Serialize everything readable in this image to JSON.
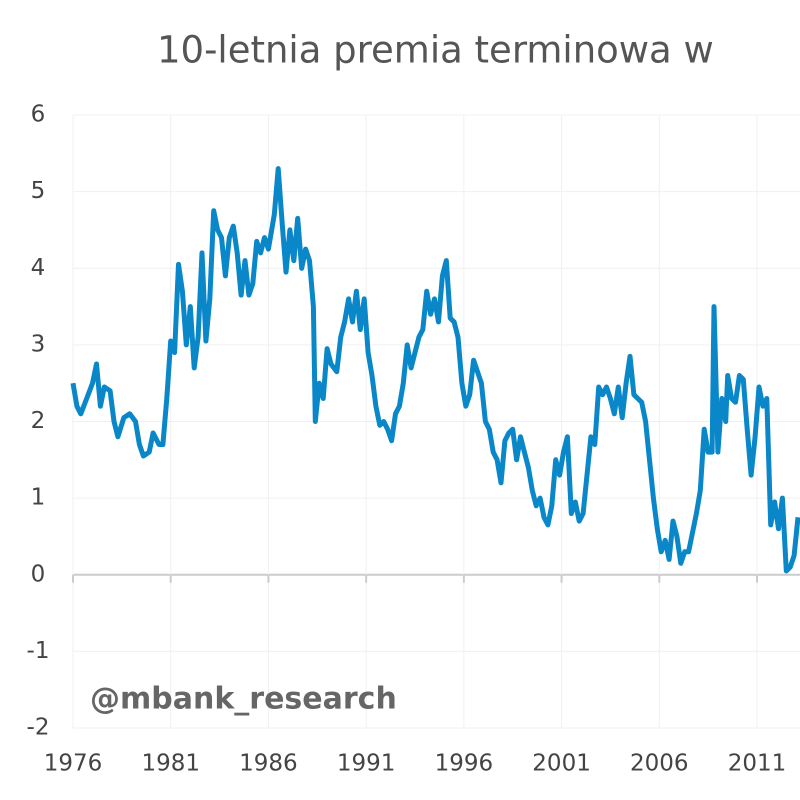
{
  "chart_data": {
    "type": "line",
    "title": "10-letnia premia terminowa w",
    "annotation": "@mbank_research",
    "xlim": [
      1976,
      2013.2
    ],
    "xticks": [
      1976,
      1981,
      1986,
      1991,
      1996,
      2001,
      2006,
      2011
    ],
    "ylim": [
      -2,
      6
    ],
    "yticks": [
      -2,
      -1,
      0,
      1,
      2,
      3,
      4,
      5,
      6
    ],
    "grid": true,
    "series": [
      {
        "name": "premia terminowa",
        "color": "#0a87c9",
        "x": [
          1976.0,
          1976.2,
          1976.4,
          1976.7,
          1977.0,
          1977.2,
          1977.4,
          1977.6,
          1977.9,
          1978.1,
          1978.3,
          1978.6,
          1978.9,
          1979.2,
          1979.4,
          1979.6,
          1979.9,
          1980.1,
          1980.4,
          1980.6,
          1980.8,
          1981.0,
          1981.2,
          1981.4,
          1981.6,
          1981.8,
          1982.0,
          1982.2,
          1982.4,
          1982.6,
          1982.8,
          1983.0,
          1983.2,
          1983.4,
          1983.6,
          1983.8,
          1984.0,
          1984.2,
          1984.4,
          1984.6,
          1984.8,
          1985.0,
          1985.2,
          1985.4,
          1985.6,
          1985.8,
          1986.0,
          1986.3,
          1986.5,
          1986.7,
          1986.9,
          1987.1,
          1987.3,
          1987.5,
          1987.7,
          1987.9,
          1988.1,
          1988.3,
          1988.4,
          1988.6,
          1988.8,
          1989.0,
          1989.2,
          1989.5,
          1989.7,
          1989.9,
          1990.1,
          1990.3,
          1990.5,
          1990.7,
          1990.9,
          1991.1,
          1991.3,
          1991.5,
          1991.7,
          1991.9,
          1992.1,
          1992.3,
          1992.5,
          1992.7,
          1992.9,
          1993.1,
          1993.3,
          1993.5,
          1993.7,
          1993.9,
          1994.1,
          1994.3,
          1994.5,
          1994.7,
          1994.9,
          1995.1,
          1995.3,
          1995.5,
          1995.7,
          1995.9,
          1996.1,
          1996.3,
          1996.5,
          1996.7,
          1996.9,
          1997.1,
          1997.3,
          1997.5,
          1997.7,
          1997.9,
          1998.1,
          1998.3,
          1998.5,
          1998.7,
          1998.9,
          1999.1,
          1999.3,
          1999.5,
          1999.7,
          1999.9,
          2000.1,
          2000.3,
          2000.5,
          2000.7,
          2000.9,
          2001.1,
          2001.3,
          2001.5,
          2001.7,
          2001.9,
          2002.1,
          2002.3,
          2002.5,
          2002.7,
          2002.9,
          2003.1,
          2003.3,
          2003.5,
          2003.7,
          2003.9,
          2004.1,
          2004.3,
          2004.5,
          2004.7,
          2004.9,
          2005.1,
          2005.3,
          2005.5,
          2005.7,
          2005.9,
          2006.1,
          2006.3,
          2006.5,
          2006.7,
          2006.9,
          2007.1,
          2007.3,
          2007.5,
          2007.7,
          2007.9,
          2008.1,
          2008.3,
          2008.5,
          2008.7,
          2008.8,
          2009.0,
          2009.2,
          2009.4,
          2009.5,
          2009.7,
          2009.9,
          2010.1,
          2010.3,
          2010.5,
          2010.7,
          2010.9,
          2011.1,
          2011.3,
          2011.5,
          2011.7,
          2011.9,
          2012.1,
          2012.3,
          2012.5,
          2012.7,
          2012.9,
          2013.1
        ],
        "values": [
          2.5,
          2.2,
          2.1,
          2.3,
          2.5,
          2.75,
          2.2,
          2.45,
          2.4,
          2.0,
          1.8,
          2.05,
          2.1,
          2.0,
          1.7,
          1.55,
          1.6,
          1.85,
          1.7,
          1.7,
          2.3,
          3.05,
          2.9,
          4.05,
          3.7,
          3.0,
          3.5,
          2.7,
          3.1,
          4.2,
          3.05,
          3.6,
          4.75,
          4.5,
          4.4,
          3.9,
          4.4,
          4.55,
          4.2,
          3.65,
          4.1,
          3.65,
          3.8,
          4.35,
          4.2,
          4.4,
          4.25,
          4.7,
          5.3,
          4.6,
          3.95,
          4.5,
          4.1,
          4.65,
          4.0,
          4.25,
          4.1,
          3.5,
          2.0,
          2.5,
          2.3,
          2.95,
          2.75,
          2.65,
          3.1,
          3.3,
          3.6,
          3.3,
          3.7,
          3.2,
          3.6,
          2.9,
          2.6,
          2.2,
          1.95,
          2.0,
          1.9,
          1.75,
          2.1,
          2.2,
          2.5,
          3.0,
          2.7,
          2.9,
          3.1,
          3.2,
          3.7,
          3.4,
          3.6,
          3.3,
          3.9,
          4.1,
          3.35,
          3.3,
          3.1,
          2.5,
          2.2,
          2.35,
          2.8,
          2.65,
          2.5,
          2.0,
          1.9,
          1.6,
          1.5,
          1.2,
          1.75,
          1.85,
          1.9,
          1.5,
          1.8,
          1.6,
          1.4,
          1.1,
          0.9,
          1.0,
          0.75,
          0.65,
          0.9,
          1.5,
          1.3,
          1.6,
          1.8,
          0.8,
          0.95,
          0.7,
          0.8,
          1.3,
          1.8,
          1.7,
          2.45,
          2.35,
          2.45,
          2.3,
          2.1,
          2.45,
          2.05,
          2.5,
          2.85,
          2.35,
          2.3,
          2.25,
          2.0,
          1.5,
          1.0,
          0.6,
          0.3,
          0.45,
          0.2,
          0.7,
          0.5,
          0.15,
          0.3,
          0.3,
          0.55,
          0.8,
          1.1,
          1.9,
          1.6,
          1.6,
          3.5,
          1.6,
          2.3,
          2.0,
          2.6,
          2.3,
          2.25,
          2.6,
          2.55,
          1.9,
          1.3,
          1.8,
          2.45,
          2.2,
          2.3,
          0.65,
          0.95,
          0.6,
          1.0,
          0.05,
          0.1,
          0.25,
          0.75
        ]
      }
    ]
  }
}
